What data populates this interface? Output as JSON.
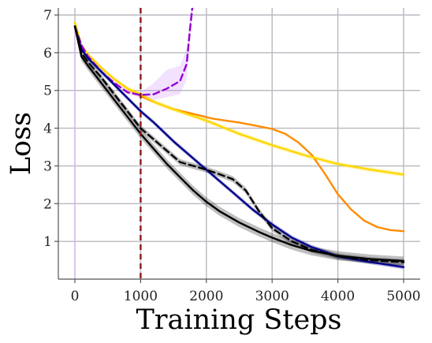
{
  "chart_data": {
    "type": "line",
    "title": "",
    "xlabel": "Training Steps",
    "ylabel": "Loss",
    "xlim": [
      -250,
      5250
    ],
    "ylim": [
      0,
      7
    ],
    "xticks": [
      "0",
      "1000",
      "2000",
      "3000",
      "4000",
      "5000"
    ],
    "yticks": [
      "1",
      "2",
      "3",
      "4",
      "5",
      "6",
      "7"
    ],
    "grid": true,
    "legend": "none",
    "vline": {
      "x": 1000,
      "color": "#8b1a1a",
      "style": "dashed"
    },
    "series": [
      {
        "color": "#ff8c00",
        "style": "solid",
        "x": [
          0,
          100,
          200,
          400,
          600,
          800,
          1000,
          1200,
          1500,
          1800,
          2100,
          2500,
          2800,
          3000,
          3200,
          3400,
          3600,
          3800,
          4000,
          4200,
          4400,
          4600,
          4800,
          5000
        ],
        "y": [
          6.8,
          6.2,
          5.95,
          5.6,
          5.3,
          5.05,
          4.85,
          4.7,
          4.5,
          4.38,
          4.25,
          4.15,
          4.05,
          3.98,
          3.85,
          3.62,
          3.3,
          2.8,
          2.25,
          1.85,
          1.55,
          1.38,
          1.3,
          1.27
        ]
      },
      {
        "color": "#ffd700",
        "style": "solid",
        "band": 0.06,
        "x": [
          0,
          100,
          200,
          400,
          600,
          800,
          1000,
          1200,
          1500,
          2000,
          2500,
          3000,
          3500,
          4000,
          4500,
          5000
        ],
        "y": [
          6.8,
          6.2,
          5.95,
          5.6,
          5.3,
          5.05,
          4.9,
          4.7,
          4.5,
          4.2,
          3.85,
          3.55,
          3.28,
          3.05,
          2.9,
          2.77
        ]
      },
      {
        "color": "#9400d3",
        "style": "dashed",
        "band_fill": "#cc88ff",
        "x": [
          0,
          100,
          200,
          400,
          600,
          800,
          1000,
          1200,
          1400,
          1600,
          1700,
          1750,
          1800
        ],
        "y": [
          6.7,
          6.2,
          5.9,
          5.5,
          5.2,
          4.95,
          4.88,
          4.9,
          5.05,
          5.25,
          5.7,
          6.6,
          7.4
        ],
        "band_upper": [
          6.75,
          6.25,
          5.95,
          5.55,
          5.25,
          5.0,
          4.95,
          5.2,
          5.55,
          5.65,
          6.1,
          7.0,
          7.6
        ],
        "band_lower": [
          6.65,
          6.15,
          5.85,
          5.45,
          5.15,
          4.9,
          4.8,
          4.75,
          4.82,
          4.9,
          5.3,
          6.2,
          7.2
        ]
      },
      {
        "color": "#00008b",
        "style": "solid",
        "band": 0.06,
        "x": [
          0,
          100,
          200,
          400,
          600,
          800,
          1000,
          1200,
          1500,
          1800,
          2100,
          2400,
          2700,
          3000,
          3300,
          3600,
          4000,
          4500,
          5000
        ],
        "y": [
          6.7,
          6.1,
          5.85,
          5.5,
          5.15,
          4.8,
          4.45,
          4.15,
          3.65,
          3.2,
          2.75,
          2.3,
          1.85,
          1.45,
          1.1,
          0.85,
          0.6,
          0.45,
          0.32
        ]
      },
      {
        "color": "#000000",
        "style": "dashed",
        "band": 0.08,
        "x": [
          0,
          100,
          200,
          400,
          600,
          800,
          1000,
          1200,
          1400,
          1600,
          1800,
          2000,
          2200,
          2400,
          2600,
          2800,
          3000,
          3300,
          3600,
          4000,
          4500,
          5000
        ],
        "y": [
          6.7,
          6.0,
          5.75,
          5.35,
          4.9,
          4.45,
          4.0,
          3.7,
          3.4,
          3.1,
          3.0,
          2.9,
          2.78,
          2.65,
          2.35,
          1.8,
          1.35,
          1.0,
          0.78,
          0.6,
          0.5,
          0.45
        ]
      },
      {
        "color": "#000000",
        "style": "solid",
        "band": 0.12,
        "x": [
          0,
          100,
          200,
          400,
          600,
          800,
          1000,
          1200,
          1400,
          1600,
          1800,
          2000,
          2200,
          2500,
          2800,
          3000,
          3300,
          3600,
          4000,
          4500,
          5000
        ],
        "y": [
          6.7,
          5.9,
          5.65,
          5.2,
          4.75,
          4.3,
          3.85,
          3.45,
          3.05,
          2.7,
          2.35,
          2.05,
          1.8,
          1.5,
          1.25,
          1.1,
          0.9,
          0.75,
          0.62,
          0.53,
          0.48
        ]
      }
    ]
  }
}
